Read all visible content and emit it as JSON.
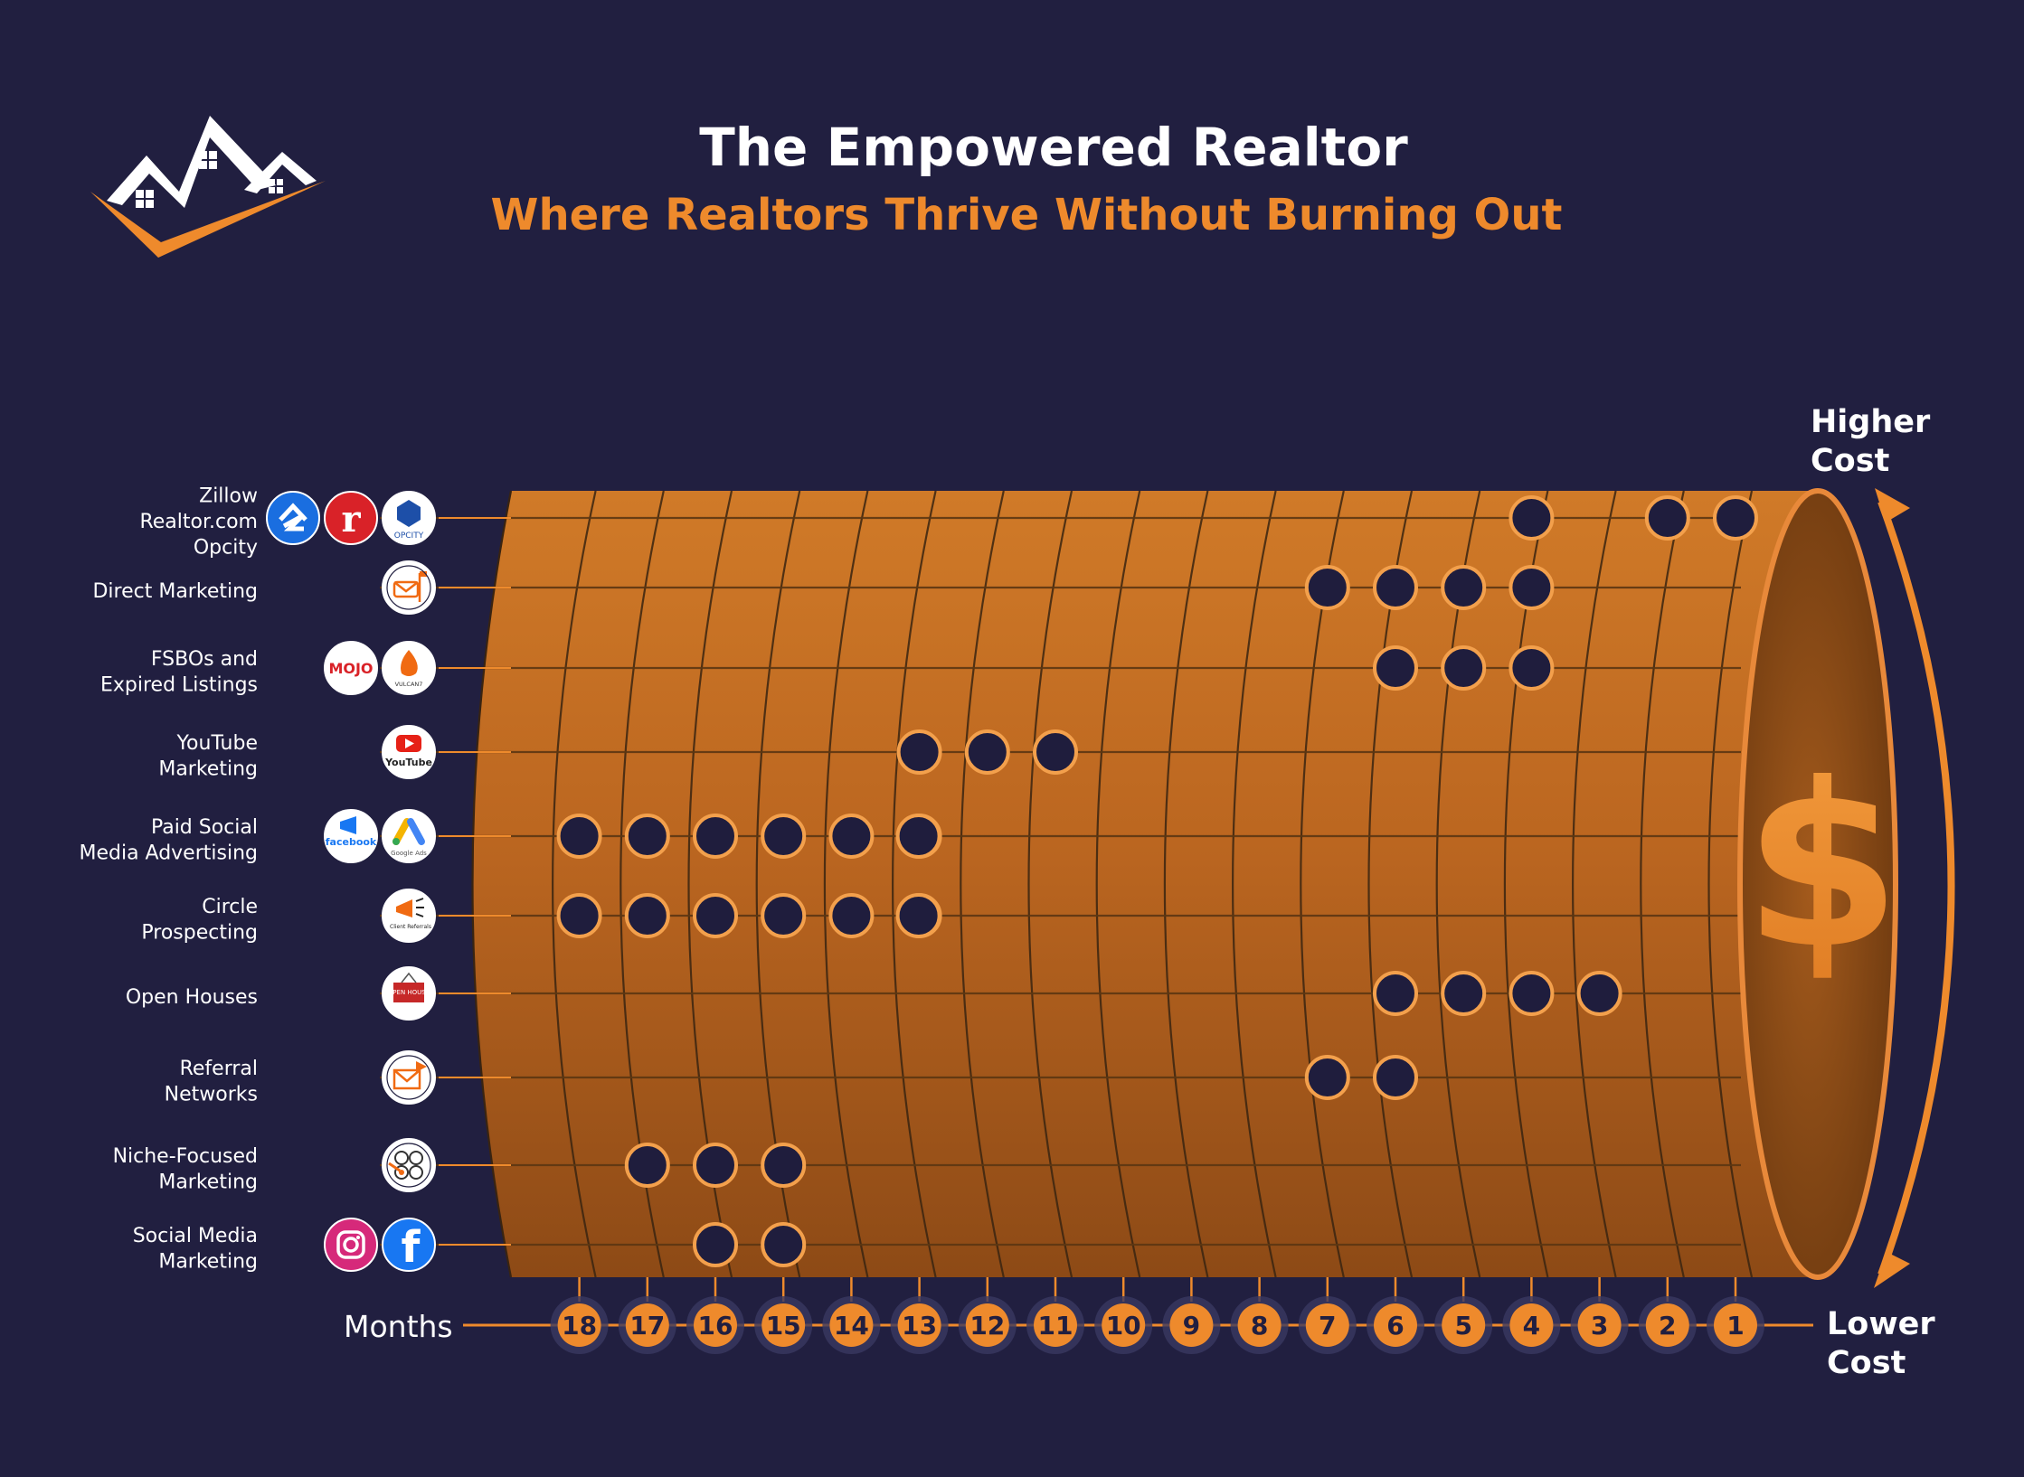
{
  "header": {
    "title": "The Empowered Realtor",
    "subtitle": "Where Realtors Thrive Without Burning Out"
  },
  "colors": {
    "background": "#211f40",
    "accent": "#ee8a2c",
    "cylinder": "#b8661f",
    "cylinder_dark": "#8a4714",
    "text": "#ffffff"
  },
  "chart_data": {
    "type": "scatter",
    "x_label": "Months",
    "months": [
      18,
      17,
      16,
      15,
      14,
      13,
      12,
      11,
      10,
      9,
      8,
      7,
      6,
      5,
      4,
      3,
      2,
      1
    ],
    "cost_axis": {
      "top_label": [
        "Higher",
        "Cost"
      ],
      "bottom_label": [
        "Lower",
        "Cost"
      ]
    },
    "currency_symbol": "$",
    "categories": [
      {
        "label": [
          "Zillow",
          "Realtor.com",
          "Opcity"
        ],
        "icons": [
          "zillow-icon",
          "realtor-icon",
          "opcity-icon"
        ],
        "icon_text": [
          "",
          "r",
          "OPCITY"
        ],
        "months": [
          4,
          2,
          1
        ]
      },
      {
        "label": [
          "Direct Marketing"
        ],
        "icons": [
          "mailbox-icon"
        ],
        "icon_text": [
          ""
        ],
        "months": [
          7,
          6,
          5,
          4
        ]
      },
      {
        "label": [
          "FSBOs and",
          "Expired Listings"
        ],
        "icons": [
          "mojo-icon",
          "vulcan7-icon"
        ],
        "icon_text": [
          "MOJO",
          "VULCAN7"
        ],
        "months": [
          6,
          5,
          4
        ]
      },
      {
        "label": [
          "YouTube",
          "Marketing"
        ],
        "icons": [
          "youtube-icon"
        ],
        "icon_text": [
          "YouTube"
        ],
        "months": [
          13,
          12,
          11
        ]
      },
      {
        "label": [
          "Paid Social",
          "Media Advertising"
        ],
        "icons": [
          "facebook-ads-icon",
          "google-ads-icon"
        ],
        "icon_text": [
          "facebook",
          "Google Ads"
        ],
        "months": [
          18,
          17,
          16,
          15,
          14,
          13,
          13
        ]
      },
      {
        "label": [
          "Circle",
          "Prospecting"
        ],
        "icons": [
          "megaphone-icon"
        ],
        "icon_text": [
          "Client Referrals"
        ],
        "months": [
          18,
          17,
          16,
          15,
          14,
          13,
          13
        ]
      },
      {
        "label": [
          "Open Houses"
        ],
        "icons": [
          "open-house-sign-icon"
        ],
        "icon_text": [
          "OPEN HOUSE"
        ],
        "months": [
          6,
          5,
          4,
          3
        ]
      },
      {
        "label": [
          "Referral",
          "Networks"
        ],
        "icons": [
          "referral-envelope-icon"
        ],
        "icon_text": [
          ""
        ],
        "months": [
          7,
          6
        ]
      },
      {
        "label": [
          "Niche-Focused",
          "Marketing"
        ],
        "icons": [
          "target-icon"
        ],
        "icon_text": [
          ""
        ],
        "months": [
          17,
          16,
          15
        ]
      },
      {
        "label": [
          "Social Media",
          "Marketing"
        ],
        "icons": [
          "instagram-icon",
          "facebook-icon"
        ],
        "icon_text": [
          "",
          "f"
        ],
        "months": [
          16,
          15
        ]
      }
    ]
  }
}
